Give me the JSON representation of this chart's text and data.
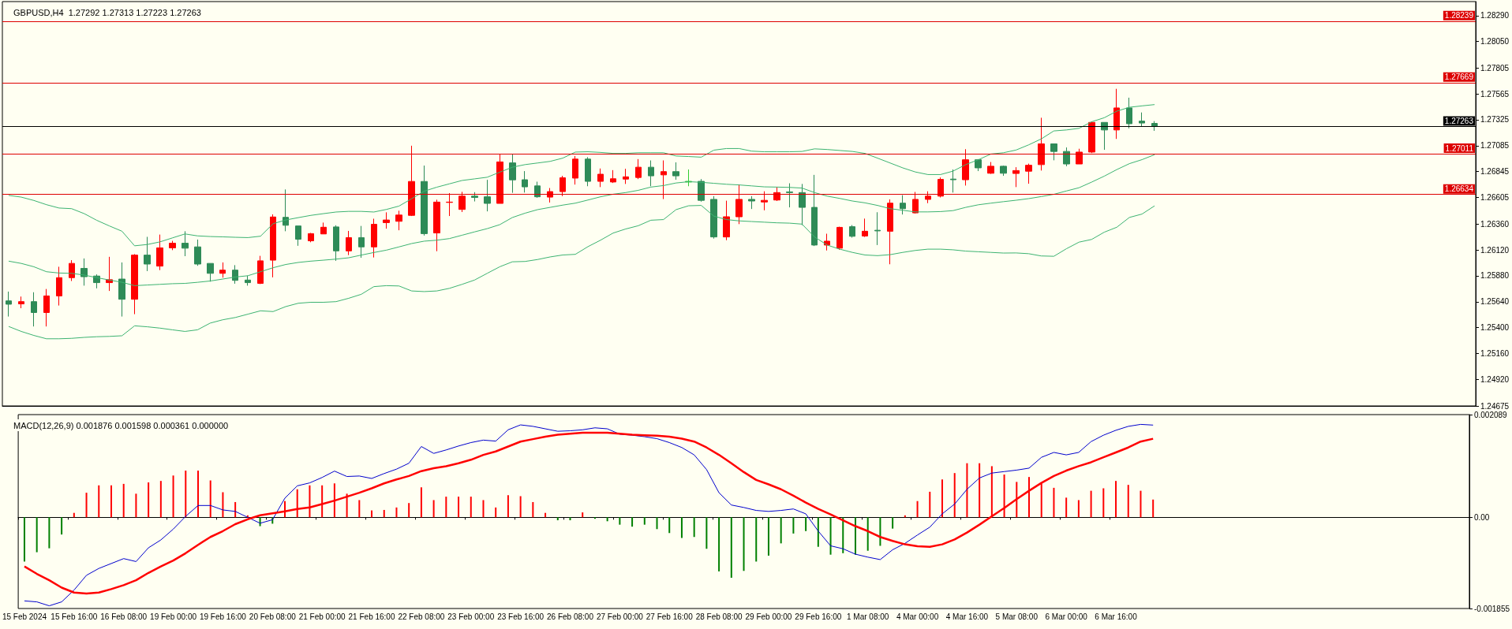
{
  "chart_data": [
    {
      "type": "candlestick",
      "title": "GBPUSD,H4  1.27292 1.27313 1.27223 1.27263",
      "marker": "none",
      "tick_labels": "y",
      "categories": [
        null,
        null,
        null,
        null,
        null,
        null,
        null,
        null,
        null,
        null,
        null,
        null,
        null,
        null,
        null,
        null,
        null,
        null,
        null,
        null,
        null,
        null,
        null,
        null,
        null,
        null,
        null,
        null,
        null,
        null,
        null,
        null,
        null,
        null,
        null,
        null,
        null,
        null,
        null,
        null,
        null,
        null,
        null,
        null,
        null,
        null,
        null,
        null,
        null,
        null,
        null,
        null,
        null,
        null,
        null,
        null,
        null,
        null,
        null,
        null,
        null,
        null,
        null,
        null,
        null,
        null,
        null,
        null,
        null,
        null,
        null,
        null,
        null,
        null,
        null,
        null,
        null,
        null,
        null,
        null,
        null,
        null,
        null,
        null,
        null,
        null,
        null,
        null,
        null,
        null,
        null,
        null
      ],
      "ylim": [
        1.24675,
        1.2842
      ],
      "yticks": [
        {
          "value": 1.24675,
          "label": "1.24675"
        },
        {
          "value": 1.2492,
          "label": "1.24920"
        },
        {
          "value": 1.2516,
          "label": "1.25160"
        },
        {
          "value": 1.254,
          "label": "1.25400"
        },
        {
          "value": 1.2564,
          "label": "1.25640"
        },
        {
          "value": 1.2588,
          "label": "1.25880"
        },
        {
          "value": 1.2612,
          "label": "1.26120"
        },
        {
          "value": 1.2636,
          "label": "1.26360"
        },
        {
          "value": 1.26605,
          "label": "1.26605"
        },
        {
          "value": 1.26845,
          "label": "1.26845"
        },
        {
          "value": 1.27085,
          "label": "1.27085"
        },
        {
          "value": 1.27325,
          "label": "1.27325"
        },
        {
          "value": 1.27565,
          "label": "1.27565"
        },
        {
          "value": 1.27805,
          "label": "1.27805"
        },
        {
          "value": 1.2805,
          "label": "1.28050"
        },
        {
          "value": 1.2829,
          "label": "1.28290"
        }
      ],
      "ref_lines": [
        {
          "axis": "y",
          "value": 1.28239,
          "label": "1.28239",
          "color": "#dd0000"
        },
        {
          "axis": "y",
          "value": 1.27669,
          "label": "1.27669",
          "color": "#dd0000"
        },
        {
          "axis": "y",
          "value": 1.27263,
          "label": "1.27263",
          "color": "#000000"
        },
        {
          "axis": "y",
          "value": 1.27011,
          "label": "1.27011",
          "color": "#dd0000"
        },
        {
          "axis": "y",
          "value": 1.26634,
          "label": "1.26634",
          "color": "#dd0000"
        }
      ],
      "series": [
        {
          "ohlc": [
            [
              1.25648,
              1.25734,
              1.25503,
              1.25617
            ],
            [
              1.2562,
              1.25688,
              1.2558,
              1.25641
            ],
            [
              1.25641,
              1.25728,
              1.25411,
              1.2554
            ],
            [
              1.2554,
              1.25758,
              1.25411,
              1.25694
            ],
            [
              1.25694,
              1.25964,
              1.25605,
              1.25863
            ],
            [
              1.25863,
              1.26025,
              1.25832,
              1.25995
            ],
            [
              1.25949,
              1.26041,
              1.25789,
              1.25872
            ],
            [
              1.25878,
              1.25893,
              1.25764,
              1.25817
            ],
            [
              1.25817,
              1.26056,
              1.2574,
              1.25844
            ],
            [
              1.2585,
              1.26004,
              1.25503,
              1.25663
            ],
            [
              1.25663,
              1.26081,
              1.25525,
              1.26072
            ],
            [
              1.26072,
              1.26241,
              1.25924,
              1.25989
            ],
            [
              1.2597,
              1.26262,
              1.25933,
              1.26139
            ],
            [
              1.26139,
              1.26204,
              1.26118,
              1.26182
            ],
            [
              1.26182,
              1.26293,
              1.26062,
              1.26136
            ],
            [
              1.26148,
              1.26216,
              1.25973,
              1.25989
            ],
            [
              1.25995,
              1.25995,
              1.25826,
              1.25903
            ],
            [
              1.25903,
              1.26004,
              1.25863,
              1.25933
            ],
            [
              1.25933,
              1.25979,
              1.25807,
              1.25838
            ],
            [
              1.25841,
              1.25881,
              1.25789,
              1.25817
            ],
            [
              1.2581,
              1.26065,
              1.25804,
              1.26019
            ],
            [
              1.26025,
              1.26449,
              1.25866,
              1.26425
            ],
            [
              1.26422,
              1.2668,
              1.26293,
              1.26348
            ],
            [
              1.26342,
              1.26342,
              1.26158,
              1.26219
            ],
            [
              1.26204,
              1.26277,
              1.26191,
              1.26271
            ],
            [
              1.26268,
              1.26373,
              1.26268,
              1.2633
            ],
            [
              1.26333,
              1.26348,
              1.26019,
              1.26111
            ],
            [
              1.26111,
              1.26296,
              1.26072,
              1.26234
            ],
            [
              1.26234,
              1.26342,
              1.26047,
              1.26148
            ],
            [
              1.26148,
              1.26409,
              1.2605,
              1.26357
            ],
            [
              1.26373,
              1.26468,
              1.26317,
              1.26397
            ],
            [
              1.26385,
              1.26483,
              1.26302,
              1.26443
            ],
            [
              1.2644,
              1.27085,
              1.26434,
              1.26754
            ],
            [
              1.26754,
              1.26901,
              1.26253,
              1.26271
            ],
            [
              1.26277,
              1.26585,
              1.26108,
              1.26563
            ],
            [
              1.2656,
              1.26646,
              1.26434,
              1.26563
            ],
            [
              1.26495,
              1.26658,
              1.26471,
              1.26618
            ],
            [
              1.26618,
              1.26655,
              1.26569,
              1.26606
            ],
            [
              1.26612,
              1.26769,
              1.26477,
              1.26551
            ],
            [
              1.26551,
              1.27009,
              1.26551,
              1.26935
            ],
            [
              1.26926,
              1.27009,
              1.26649,
              1.26769
            ],
            [
              1.2677,
              1.2685,
              1.26651,
              1.26704
            ],
            [
              1.26713,
              1.26752,
              1.26603,
              1.26612
            ],
            [
              1.26609,
              1.26693,
              1.26559,
              1.2666
            ],
            [
              1.2666,
              1.26806,
              1.26618,
              1.26788
            ],
            [
              1.26785,
              1.2699,
              1.26725,
              1.26961
            ],
            [
              1.26961,
              1.26979,
              1.2671,
              1.26755
            ],
            [
              1.26755,
              1.26874,
              1.26702,
              1.26821
            ],
            [
              1.26749,
              1.26859,
              1.2674,
              1.26779
            ],
            [
              1.26776,
              1.26871,
              1.26731,
              1.26797
            ],
            [
              1.26791,
              1.26961,
              1.26776,
              1.26886
            ],
            [
              1.26886,
              1.26949,
              1.2671,
              1.26806
            ],
            [
              1.26815,
              1.26949,
              1.26591,
              1.26845
            ],
            [
              1.26845,
              1.26931,
              1.2677,
              1.26806
            ],
            [
              1.26755,
              1.26865,
              1.2671,
              1.26749
            ],
            [
              1.26755,
              1.26776,
              1.26567,
              1.26579
            ],
            [
              1.26588,
              1.26618,
              1.26225,
              1.2624
            ],
            [
              1.2624,
              1.26576,
              1.2621,
              1.26427
            ],
            [
              1.26427,
              1.26725,
              1.26359,
              1.26588
            ],
            [
              1.26588,
              1.26618,
              1.26499,
              1.26573
            ],
            [
              1.26564,
              1.26663,
              1.26487,
              1.26579
            ],
            [
              1.26582,
              1.26702,
              1.26573,
              1.26651
            ],
            [
              1.26657,
              1.26737,
              1.26514,
              1.26651
            ],
            [
              1.26651,
              1.26731,
              1.2635,
              1.26514
            ],
            [
              1.26514,
              1.26815,
              1.26156,
              1.26165
            ],
            [
              1.26165,
              1.2627,
              1.26115,
              1.26201
            ],
            [
              1.26136,
              1.26335,
              1.26121,
              1.26329
            ],
            [
              1.26335,
              1.2635,
              1.26234,
              1.26246
            ],
            [
              1.26249,
              1.2641,
              1.2624,
              1.26293
            ],
            [
              1.26302,
              1.26469,
              1.26165,
              1.26296
            ],
            [
              1.26293,
              1.26588,
              1.25987,
              1.26553
            ],
            [
              1.26553,
              1.26627,
              1.26448,
              1.26502
            ],
            [
              1.26463,
              1.26657,
              1.26457,
              1.26588
            ],
            [
              1.26588,
              1.26663,
              1.26553,
              1.26618
            ],
            [
              1.26618,
              1.26791,
              1.26606,
              1.26773
            ],
            [
              1.26776,
              1.26865,
              1.26651,
              1.2677
            ],
            [
              1.2677,
              1.27053,
              1.26716,
              1.26955
            ],
            [
              1.26955,
              1.26961,
              1.2685,
              1.2688
            ],
            [
              1.2683,
              1.26934,
              1.26824,
              1.26895
            ],
            [
              1.26895,
              1.26901,
              1.26806,
              1.2683
            ],
            [
              1.26828,
              1.26886,
              1.26702,
              1.26855
            ],
            [
              1.26849,
              1.26919,
              1.26733,
              1.26904
            ],
            [
              1.2691,
              1.27344,
              1.26855,
              1.27102
            ],
            [
              1.27102,
              1.27102,
              1.2695,
              1.27032
            ],
            [
              1.27032,
              1.27069,
              1.26895,
              1.26916
            ],
            [
              1.26916,
              1.27057,
              1.26916,
              1.27026
            ],
            [
              1.27026,
              1.27307,
              1.27017,
              1.27301
            ],
            [
              1.27301,
              1.27301,
              1.27047,
              1.27231
            ],
            [
              1.27231,
              1.27612,
              1.27148,
              1.27435
            ],
            [
              1.27435,
              1.2753,
              1.27246,
              1.27289
            ],
            [
              1.27313,
              1.27393,
              1.27261,
              1.27295
            ],
            [
              1.27292,
              1.27313,
              1.27223,
              1.27263
            ]
          ],
          "colors": [
            "#2e8b57",
            "#ff0000",
            "#2e8b57",
            "#ff0000",
            "#ff0000",
            "#ff0000",
            "#2e8b57",
            "#2e8b57",
            "#ff0000",
            "#2e8b57",
            "#ff0000",
            "#2e8b57",
            "#ff0000",
            "#ff0000",
            "#2e8b57",
            "#2e8b57",
            "#2e8b57",
            "#ff0000",
            "#2e8b57",
            "#2e8b57",
            "#ff0000",
            "#ff0000",
            "#2e8b57",
            "#2e8b57",
            "#ff0000",
            "#ff0000",
            "#2e8b57",
            "#ff0000",
            "#2e8b57",
            "#ff0000",
            "#ff0000",
            "#ff0000",
            "#ff0000",
            "#2e8b57",
            "#ff0000",
            "#ff0000",
            "#ff0000",
            "#2e8b57",
            "#2e8b57",
            "#ff0000",
            "#2e8b57",
            "#2e8b57",
            "#2e8b57",
            "#ff0000",
            "#ff0000",
            "#ff0000",
            "#2e8b57",
            "#ff0000",
            "#ff0000",
            "#ff0000",
            "#ff0000",
            "#2e8b57",
            "#ff0000",
            "#2e8b57",
            "#32cd32",
            "#2e8b57",
            "#2e8b57",
            "#ff0000",
            "#ff0000",
            "#2e8b57",
            "#ff0000",
            "#ff0000",
            "#2e8b57",
            "#2e8b57",
            "#2e8b57",
            "#ff0000",
            "#ff0000",
            "#2e8b57",
            "#ff0000",
            "#2e8b57",
            "#ff0000",
            "#2e8b57",
            "#ff0000",
            "#ff0000",
            "#ff0000",
            "#2e8b57",
            "#ff0000",
            "#2e8b57",
            "#ff0000",
            "#2e8b57",
            "#ff0000",
            "#ff0000",
            "#ff0000",
            "#2e8b57",
            "#2e8b57",
            "#ff0000",
            "#ff0000",
            "#2e8b57",
            "#ff0000",
            "#2e8b57",
            "#2e8b57",
            "#2e8b57"
          ]
        },
        {
          "type": "line",
          "color": "#3cb371",
          "values": [
            1.26625,
            1.26609,
            1.26578,
            1.26539,
            1.26508,
            1.26502,
            1.26456,
            1.26394,
            1.26342,
            1.26293,
            1.26158,
            1.2617,
            1.26194,
            1.26231,
            1.26268,
            1.2625,
            1.26244,
            1.26241,
            1.26237,
            1.26234,
            1.26247,
            1.26363,
            1.26397,
            1.26419,
            1.2644,
            1.26456,
            1.26471,
            1.26477,
            1.26477,
            1.26471,
            1.26495,
            1.26526,
            1.26594,
            1.26664,
            1.26701,
            1.26732,
            1.26763,
            1.26778,
            1.26793,
            1.2684,
            1.26886,
            1.2691,
            1.26925,
            1.2694,
            1.2697,
            1.27026,
            1.27029,
            1.27023,
            1.27014,
            1.27014,
            1.2702,
            1.2702,
            1.2702,
            1.2699,
            1.26985,
            1.26979,
            1.27044,
            1.27059,
            1.27059,
            1.27035,
            1.27029,
            1.27029,
            1.27029,
            1.27032,
            1.27056,
            1.2705,
            1.27041,
            1.27032,
            1.27014,
            1.2697,
            1.26925,
            1.2688,
            1.26842,
            1.26818,
            1.26818,
            1.2685,
            1.2691,
            1.26955,
            1.27008,
            1.2702,
            1.27045,
            1.27093,
            1.27148,
            1.27222,
            1.27231,
            1.27246,
            1.27307,
            1.27344,
            1.27405,
            1.27441,
            1.27454,
            1.27466
          ]
        },
        {
          "type": "line",
          "color": "#3cb371",
          "values": [
            1.26016,
            1.25995,
            1.25964,
            1.25918,
            1.25906,
            1.25903,
            1.25887,
            1.25863,
            1.25841,
            1.2582,
            1.25789,
            1.25795,
            1.25801,
            1.25807,
            1.2581,
            1.2582,
            1.25832,
            1.2585,
            1.25869,
            1.25881,
            1.25918,
            1.25955,
            1.25985,
            1.26004,
            1.26016,
            1.26025,
            1.26035,
            1.26047,
            1.26072,
            1.26096,
            1.26118,
            1.26148,
            1.26179,
            1.26201,
            1.2621,
            1.26225,
            1.26256,
            1.26287,
            1.26317,
            1.26354,
            1.2642,
            1.2646,
            1.26493,
            1.26514,
            1.26535,
            1.26553,
            1.26582,
            1.26612,
            1.26636,
            1.26651,
            1.26672,
            1.26702,
            1.26716,
            1.2674,
            1.26752,
            1.26746,
            1.26737,
            1.26728,
            1.26722,
            1.26713,
            1.26704,
            1.26702,
            1.26699,
            1.26693,
            1.26651,
            1.26618,
            1.26597,
            1.26573,
            1.26556,
            1.26532,
            1.26502,
            1.26487,
            1.26472,
            1.26472,
            1.26475,
            1.26484,
            1.26514,
            1.26538,
            1.26553,
            1.26567,
            1.2658,
            1.26595,
            1.26614,
            1.26635,
            1.26666,
            1.26696,
            1.26748,
            1.26803,
            1.26864,
            1.26919,
            1.26956,
            1.27002
          ]
        },
        {
          "type": "line",
          "color": "#3cb371",
          "values": [
            1.25411,
            1.25365,
            1.25328,
            1.25297,
            1.25297,
            1.25301,
            1.2531,
            1.25316,
            1.25319,
            1.25325,
            1.25417,
            1.25408,
            1.25396,
            1.2538,
            1.25365,
            1.2538,
            1.25442,
            1.25473,
            1.25494,
            1.25525,
            1.25556,
            1.25549,
            1.25595,
            1.25626,
            1.25635,
            1.25635,
            1.25641,
            1.25672,
            1.25709,
            1.2578,
            1.25789,
            1.25786,
            1.2574,
            1.25734,
            1.2574,
            1.25764,
            1.25801,
            1.25841,
            1.25903,
            1.25964,
            1.2601,
            1.26013,
            1.26031,
            1.26055,
            1.26073,
            1.26079,
            1.2615,
            1.2621,
            1.26276,
            1.26314,
            1.26344,
            1.26395,
            1.26401,
            1.26493,
            1.26529,
            1.26532,
            1.26433,
            1.26401,
            1.26389,
            1.26383,
            1.26377,
            1.26371,
            1.26368,
            1.26359,
            1.2624,
            1.26165,
            1.26127,
            1.26097,
            1.26073,
            1.26067,
            1.26076,
            1.26097,
            1.26115,
            1.26127,
            1.26127,
            1.26121,
            1.26109,
            1.26103,
            1.26097,
            1.26091,
            1.26092,
            1.26085,
            1.26064,
            1.26061,
            1.26131,
            1.26192,
            1.26217,
            1.26284,
            1.2633,
            1.26421,
            1.26452,
            1.26528
          ]
        }
      ]
    },
    {
      "type": "bar",
      "title": "MACD(12,26,9) 0.001876 0.001598 0.000361 0.000000",
      "marker": "none",
      "categories": [
        "15 Feb 2024",
        null,
        null,
        null,
        "15 Feb 16:00",
        null,
        null,
        null,
        "16 Feb 08:00",
        null,
        null,
        null,
        "19 Feb 00:00",
        null,
        null,
        null,
        "19 Feb 16:00",
        null,
        null,
        null,
        "20 Feb 08:00",
        null,
        null,
        null,
        "21 Feb 00:00",
        null,
        null,
        null,
        "21 Feb 16:00",
        null,
        null,
        null,
        "22 Feb 08:00",
        null,
        null,
        null,
        "23 Feb 00:00",
        null,
        null,
        null,
        "23 Feb 16:00",
        null,
        null,
        null,
        "26 Feb 08:00",
        null,
        null,
        null,
        "27 Feb 00:00",
        null,
        null,
        null,
        "27 Feb 16:00",
        null,
        null,
        null,
        "28 Feb 08:00",
        null,
        null,
        null,
        "29 Feb 00:00",
        null,
        null,
        null,
        "29 Feb 16:00",
        null,
        null,
        null,
        "1 Mar 08:00",
        null,
        null,
        null,
        "4 Mar 00:00",
        null,
        null,
        null,
        "4 Mar 16:00",
        null,
        null,
        null,
        "5 Mar 08:00",
        null,
        null,
        null,
        "6 Mar 00:00",
        null,
        null,
        null,
        "6 Mar 16:00",
        null,
        null,
        null
      ],
      "ylim": [
        -0.001855,
        0.002089
      ],
      "yticks": [
        -0.001855,
        {
          "value": 0,
          "label": "0.00"
        },
        0.002089
      ],
      "series": [
        {
          "values": [
            -0.0009,
            -0.00071,
            -0.00063,
            -0.00035,
            9e-05,
            0.0005,
            0.00065,
            0.00065,
            0.00068,
            0.00048,
            0.00071,
            0.00074,
            0.00085,
            0.00095,
            0.00095,
            0.00075,
            0.00051,
            0.00031,
            4e-05,
            -0.00018,
            -0.00013,
            0.00033,
            0.00057,
            0.00065,
            0.00065,
            0.00069,
            0.00048,
            0.00035,
            0.00014,
            0.00015,
            0.0002,
            0.00029,
            0.00061,
            0.00035,
            0.00042,
            0.00042,
            0.00042,
            0.00035,
            0.0002,
            0.00045,
            0.00043,
            0.00031,
            9e-05,
            -6e-05,
            -6e-05,
            0.0001,
            -3e-05,
            -8e-05,
            -0.00015,
            -0.00019,
            -0.00015,
            -0.00024,
            -0.00032,
            -0.00042,
            -0.0004,
            -0.00064,
            -0.0011,
            -0.00123,
            -0.00109,
            -0.0009,
            -0.00078,
            -0.00053,
            -0.00033,
            -0.00028,
            -0.0006,
            -0.00076,
            -0.00073,
            -0.00076,
            -0.00068,
            -0.00058,
            -0.00023,
            4e-05,
            0.00033,
            0.00052,
            0.00077,
            0.0009,
            0.0011,
            0.0011,
            0.00104,
            0.00087,
            0.00072,
            0.00082,
            0.00069,
            0.0006,
            0.0004,
            0.00035,
            0.00054,
            0.00059,
            0.00074,
            0.00066,
            0.00054,
            0.000361
          ],
          "colors": [
            "#008000",
            "#008000",
            "#008000",
            "#008000",
            "#ff0000",
            "#ff0000",
            "#ff0000",
            "#ff0000",
            "#ff0000",
            "#ff0000",
            "#ff0000",
            "#ff0000",
            "#ff0000",
            "#ff0000",
            "#ff0000",
            "#ff0000",
            "#ff0000",
            "#ff0000",
            "#ff0000",
            "#008000",
            "#008000",
            "#ff0000",
            "#ff0000",
            "#ff0000",
            "#ff0000",
            "#ff0000",
            "#ff0000",
            "#ff0000",
            "#ff0000",
            "#ff0000",
            "#ff0000",
            "#ff0000",
            "#ff0000",
            "#ff0000",
            "#ff0000",
            "#ff0000",
            "#ff0000",
            "#ff0000",
            "#ff0000",
            "#ff0000",
            "#ff0000",
            "#ff0000",
            "#ff0000",
            "#008000",
            "#008000",
            "#ff0000",
            "#008000",
            "#008000",
            "#008000",
            "#008000",
            "#008000",
            "#008000",
            "#008000",
            "#008000",
            "#008000",
            "#008000",
            "#008000",
            "#008000",
            "#008000",
            "#008000",
            "#008000",
            "#008000",
            "#008000",
            "#008000",
            "#008000",
            "#008000",
            "#008000",
            "#008000",
            "#008000",
            "#008000",
            "#008000",
            "#ff0000",
            "#ff0000",
            "#ff0000",
            "#ff0000",
            "#ff0000",
            "#ff0000",
            "#ff0000",
            "#ff0000",
            "#ff0000",
            "#ff0000",
            "#ff0000",
            "#ff0000",
            "#ff0000",
            "#ff0000",
            "#ff0000",
            "#ff0000",
            "#ff0000",
            "#ff0000",
            "#ff0000",
            "#ff0000",
            "#ff0000"
          ]
        },
        {
          "type": "line",
          "color": "#0000cd",
          "values": [
            -0.0017,
            -0.00172,
            -0.0018,
            -0.00172,
            -0.00148,
            -0.00118,
            -0.00104,
            -0.00094,
            -0.00084,
            -0.0009,
            -0.00062,
            -0.00046,
            -0.00024,
            2e-05,
            0.00024,
            0.00024,
            0.00015,
            0.00012,
            0,
            -0.00012,
            -5e-05,
            0.00039,
            0.00064,
            0.0007,
            0.00081,
            0.00094,
            0.00083,
            0.00084,
            0.00079,
            0.00089,
            0.00098,
            0.0011,
            0.00144,
            0.0013,
            0.00137,
            0.00145,
            0.00152,
            0.00157,
            0.00155,
            0.00178,
            0.00188,
            0.00185,
            0.0018,
            0.00175,
            0.00176,
            0.00178,
            0.00182,
            0.0018,
            0.00169,
            0.00167,
            0.00164,
            0.0016,
            0.00152,
            0.00142,
            0.00127,
            0.00097,
            0.0005,
            0.00025,
            0.0002,
            0.00014,
            0.00012,
            0.00014,
            0.00017,
            7e-05,
            -0.00028,
            -0.00058,
            -0.00064,
            -0.00075,
            -0.00081,
            -0.00086,
            -0.00066,
            -0.00053,
            -0.00036,
            -0.0002,
            7e-05,
            0.00027,
            0.00057,
            0.0008,
            0.0009,
            0.00093,
            0.00096,
            0.001,
            0.00122,
            0.00132,
            0.00127,
            0.00132,
            0.00154,
            0.00167,
            0.00177,
            0.00185,
            0.00189,
            0.001876
          ]
        },
        {
          "type": "line",
          "color": "#ff0000",
          "values": [
            -0.001,
            -0.00115,
            -0.00128,
            -0.00143,
            -0.00153,
            -0.00155,
            -0.00153,
            -0.00146,
            -0.00138,
            -0.00128,
            -0.00113,
            -0.001,
            -0.00088,
            -0.00073,
            -0.00056,
            -0.0004,
            -0.00028,
            -0.00014,
            -4e-05,
            4e-05,
            8e-05,
            0.00012,
            0.00017,
            0.0002,
            0.00027,
            0.00034,
            0.00042,
            0.0005,
            0.00059,
            0.00069,
            0.00077,
            0.00084,
            0.00094,
            0.001,
            0.00104,
            0.0011,
            0.00117,
            0.00127,
            0.00134,
            0.00144,
            0.00154,
            0.00159,
            0.00164,
            0.00168,
            0.0017,
            0.00172,
            0.00172,
            0.00172,
            0.0017,
            0.00168,
            0.00167,
            0.00166,
            0.00164,
            0.0016,
            0.00154,
            0.00142,
            0.00127,
            0.0011,
            0.00092,
            0.00076,
            0.00067,
            0.00057,
            0.00044,
            0.0003,
            0.00017,
            6e-05,
            -6e-05,
            -0.00018,
            -0.00028,
            -0.0004,
            -0.00048,
            -0.00055,
            -0.00059,
            -0.0006,
            -0.00055,
            -0.00045,
            -0.00031,
            -0.00015,
            2e-05,
            0.00019,
            0.00037,
            0.00054,
            0.0007,
            0.00084,
            0.00095,
            0.00104,
            0.00112,
            0.00122,
            0.00132,
            0.00142,
            0.00154,
            0.001598
          ]
        }
      ]
    }
  ]
}
